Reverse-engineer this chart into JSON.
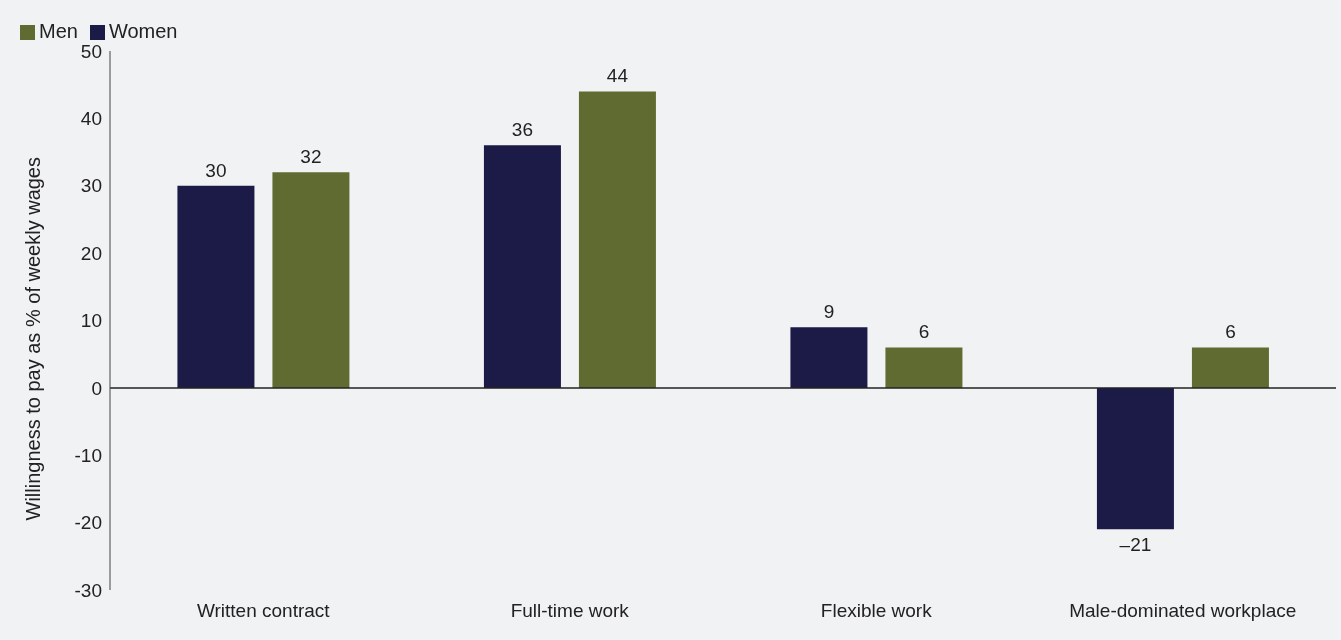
{
  "chart_data": {
    "type": "bar",
    "ylabel": "Willingness to pay as % of weekly wages",
    "categories": [
      "Written contract",
      "Full-time work",
      "Flexible work",
      "Male-dominated workplace"
    ],
    "series": [
      {
        "name": "Women",
        "color": "#1c1a47",
        "values": [
          30,
          36,
          9,
          -21
        ],
        "value_labels": [
          "30",
          "36",
          "9",
          "–21"
        ]
      },
      {
        "name": "Men",
        "color": "#5f6b30",
        "values": [
          32,
          44,
          6,
          6
        ],
        "value_labels": [
          "32",
          "44",
          "6",
          "6"
        ]
      }
    ],
    "ylim": [
      -30,
      50
    ],
    "yticks": [
      -30,
      -20,
      -10,
      0,
      10,
      20,
      30,
      40,
      50
    ],
    "ref_lines": [
      {
        "axis": "y",
        "value": 0,
        "color": "#222222"
      }
    ],
    "legend": "top left"
  }
}
